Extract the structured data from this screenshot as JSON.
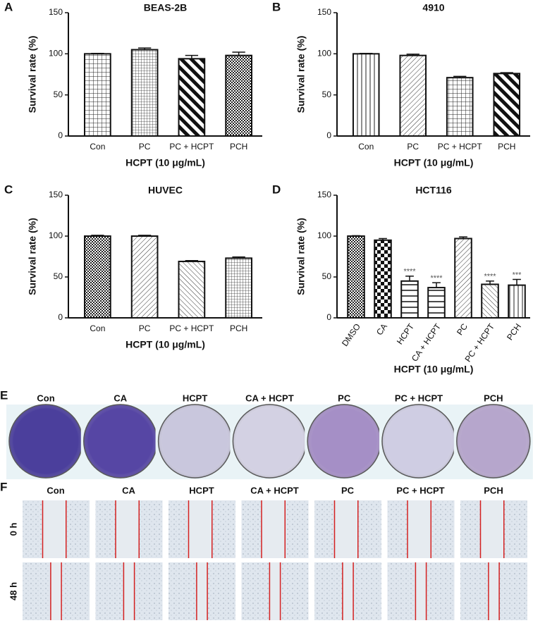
{
  "chart_data": [
    {
      "type": "bar",
      "panel": "A",
      "title": "BEAS-2B",
      "xlabel": "HCPT (10 μg/mL)",
      "ylabel": "Survival rate (%)",
      "categories": [
        "Con",
        "PC",
        "PC + HCPT",
        "PCH"
      ],
      "values": [
        100,
        105,
        94,
        98
      ],
      "errors": [
        0.5,
        2,
        4,
        4
      ],
      "patterns": [
        "grid",
        "dots",
        "bold-diag",
        "check"
      ],
      "ylim": [
        0,
        150
      ],
      "yticks": [
        0,
        50,
        100,
        150
      ]
    },
    {
      "type": "bar",
      "panel": "B",
      "title": "4910",
      "xlabel": "HCPT (10 μg/mL)",
      "ylabel": "Survival rate (%)",
      "categories": [
        "Con",
        "PC",
        "PC + HCPT",
        "PCH"
      ],
      "values": [
        100,
        98,
        71,
        76
      ],
      "errors": [
        0.5,
        1.5,
        1.5,
        1
      ],
      "patterns": [
        "vert",
        "diag",
        "grid",
        "bold-diag"
      ],
      "ylim": [
        0,
        150
      ],
      "yticks": [
        0,
        50,
        100,
        150
      ]
    },
    {
      "type": "bar",
      "panel": "C",
      "title": "HUVEC",
      "xlabel": "HCPT (10 μg/mL)",
      "ylabel": "Survival rate (%)",
      "categories": [
        "Con",
        "PC",
        "PC + HCPT",
        "PCH"
      ],
      "values": [
        100,
        100,
        69,
        73
      ],
      "errors": [
        1,
        1,
        1,
        1.5
      ],
      "patterns": [
        "check",
        "diag",
        "back-diag",
        "dots"
      ],
      "ylim": [
        0,
        150
      ],
      "yticks": [
        0,
        50,
        100,
        150
      ]
    },
    {
      "type": "bar",
      "panel": "D",
      "title": "HCT116",
      "xlabel": "HCPT (10 μg/mL)",
      "ylabel": "Survival rate (%)",
      "categories": [
        "DMSO",
        "CA",
        "HCPT",
        "CA + HCPT",
        "PC",
        "PC + HCPT",
        "PCH"
      ],
      "values": [
        100,
        95,
        45,
        37,
        97,
        41,
        40
      ],
      "errors": [
        0.5,
        2,
        6,
        6,
        2,
        4,
        7
      ],
      "annotations": [
        null,
        null,
        "****",
        "****",
        null,
        "****",
        "***"
      ],
      "patterns": [
        "check",
        "checker",
        "horiz",
        "horiz",
        "diag",
        "back-diag",
        "vert"
      ],
      "ylim": [
        0,
        150
      ],
      "yticks": [
        0,
        50,
        100,
        150
      ]
    }
  ],
  "panel_e": {
    "letter": "E",
    "labels": [
      "Con",
      "CA",
      "HCPT",
      "CA + HCPT",
      "PC",
      "PC + HCPT",
      "PCH"
    ],
    "colors": [
      "#4b3f9c",
      "#5646a4",
      "#c9c7dd",
      "#d3d1e3",
      "#a58fc6",
      "#cfcde3",
      "#b6a6cc"
    ]
  },
  "panel_f": {
    "letter": "F",
    "labels": [
      "Con",
      "CA",
      "HCPT",
      "CA + HCPT",
      "PC",
      "PC + HCPT",
      "PCH"
    ],
    "rows": [
      "0 h",
      "48 h"
    ]
  }
}
